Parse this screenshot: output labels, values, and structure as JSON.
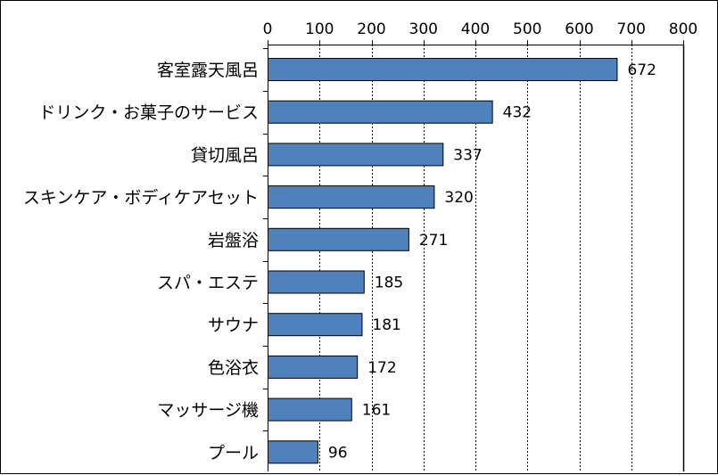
{
  "chart_data": {
    "type": "bar",
    "orientation": "horizontal",
    "categories": [
      "客室露天風呂",
      "ドリンク・お菓子のサービス",
      "貸切風呂",
      "スキンケア・ボディケアセット",
      "岩盤浴",
      "スパ・エステ",
      "サウナ",
      "色浴衣",
      "マッサージ機",
      "プール"
    ],
    "values": [
      672,
      432,
      337,
      320,
      271,
      185,
      181,
      172,
      161,
      96
    ],
    "data_labels": [
      "672",
      "432",
      "337",
      "320",
      "271",
      "185",
      "181",
      "172",
      "161",
      "96"
    ],
    "x_ticks": [
      0,
      100,
      200,
      300,
      400,
      500,
      600,
      700,
      800
    ],
    "x_tick_labels": [
      "0",
      "100",
      "200",
      "300",
      "400",
      "500",
      "600",
      "700",
      "800"
    ],
    "xlim": [
      0,
      800
    ],
    "xaxis_position": "top",
    "grid": "vertical dashed",
    "legend": "none",
    "colors": {
      "bar_fill": "#4F81BD",
      "bar_stroke": "#000000",
      "grid": "#000000",
      "axis": "#000000"
    }
  }
}
